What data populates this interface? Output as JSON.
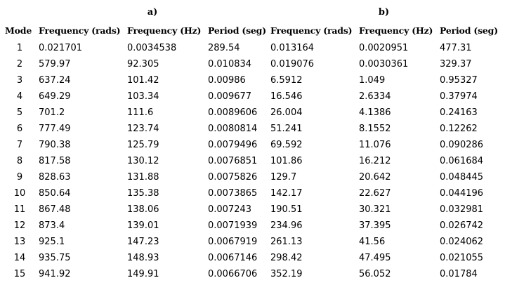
{
  "groups": {
    "a": "a)",
    "b": "b)"
  },
  "headers": {
    "mode": "Mode",
    "freq_rads": "Frequency (rads)",
    "freq_hz": "Frequency (Hz)",
    "period": "Period (seg)"
  },
  "rows": [
    {
      "mode": "1",
      "a_rads": "0.021701",
      "a_hz": "0.0034538",
      "a_period": "289.54",
      "b_rads": "0.013164",
      "b_hz": "0.0020951",
      "b_period": "477.31"
    },
    {
      "mode": "2",
      "a_rads": "579.97",
      "a_hz": "92.305",
      "a_period": "0.010834",
      "b_rads": "0.019076",
      "b_hz": "0.0030361",
      "b_period": "329.37"
    },
    {
      "mode": "3",
      "a_rads": "637.24",
      "a_hz": "101.42",
      "a_period": "0.00986",
      "b_rads": "6.5912",
      "b_hz": "1.049",
      "b_period": "0.95327"
    },
    {
      "mode": "4",
      "a_rads": "649.29",
      "a_hz": "103.34",
      "a_period": "0.009677",
      "b_rads": "16.546",
      "b_hz": "2.6334",
      "b_period": "0.37974"
    },
    {
      "mode": "5",
      "a_rads": "701.2",
      "a_hz": "111.6",
      "a_period": "0.0089606",
      "b_rads": "26.004",
      "b_hz": "4.1386",
      "b_period": "0.24163"
    },
    {
      "mode": "6",
      "a_rads": "777.49",
      "a_hz": "123.74",
      "a_period": "0.0080814",
      "b_rads": "51.241",
      "b_hz": "8.1552",
      "b_period": "0.12262"
    },
    {
      "mode": "7",
      "a_rads": "790.38",
      "a_hz": "125.79",
      "a_period": "0.0079496",
      "b_rads": "69.592",
      "b_hz": "11.076",
      "b_period": "0.090286"
    },
    {
      "mode": "8",
      "a_rads": "817.58",
      "a_hz": "130.12",
      "a_period": "0.0076851",
      "b_rads": "101.86",
      "b_hz": "16.212",
      "b_period": "0.061684"
    },
    {
      "mode": "9",
      "a_rads": "828.63",
      "a_hz": "131.88",
      "a_period": "0.0075826",
      "b_rads": "129.7",
      "b_hz": "20.642",
      "b_period": "0.048445"
    },
    {
      "mode": "10",
      "a_rads": "850.64",
      "a_hz": "135.38",
      "a_period": "0.0073865",
      "b_rads": "142.17",
      "b_hz": "22.627",
      "b_period": "0.044196"
    },
    {
      "mode": "11",
      "a_rads": "867.48",
      "a_hz": "138.06",
      "a_period": "0.007243",
      "b_rads": "190.51",
      "b_hz": "30.321",
      "b_period": "0.032981"
    },
    {
      "mode": "12",
      "a_rads": "873.4",
      "a_hz": "139.01",
      "a_period": "0.0071939",
      "b_rads": "234.96",
      "b_hz": "37.395",
      "b_period": "0.026742"
    },
    {
      "mode": "13",
      "a_rads": "925.1",
      "a_hz": "147.23",
      "a_period": "0.0067919",
      "b_rads": "261.13",
      "b_hz": "41.56",
      "b_period": "0.024062"
    },
    {
      "mode": "14",
      "a_rads": "935.75",
      "a_hz": "148.93",
      "a_period": "0.0067146",
      "b_rads": "298.42",
      "b_hz": "47.495",
      "b_period": "0.021055"
    },
    {
      "mode": "15",
      "a_rads": "941.92",
      "a_hz": "149.91",
      "a_period": "0.0066706",
      "b_rads": "352.19",
      "b_hz": "56.052",
      "b_period": "0.01784"
    }
  ]
}
